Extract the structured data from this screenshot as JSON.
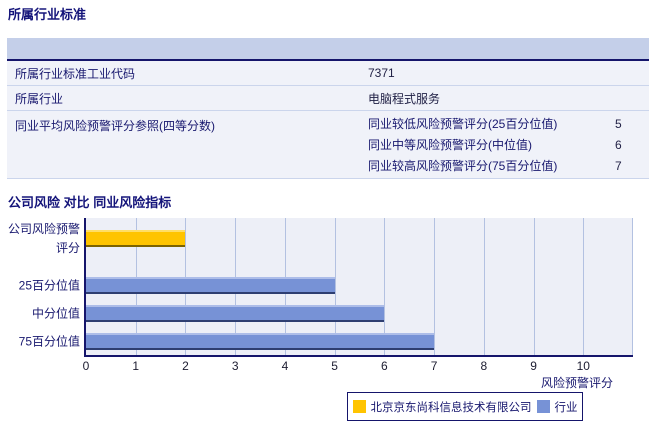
{
  "sections": {
    "industry_title": "所属行业标准",
    "compare_title": "公司风险 对比 同业风险指标"
  },
  "industry_table": {
    "rows": [
      {
        "label": "所属行业标准工业代码",
        "value": "7371"
      },
      {
        "label": "所属行业",
        "value": "电脑程式服务"
      }
    ],
    "peer_reference": {
      "label": "同业平均风险预警评分参照(四等分数)",
      "subrows": [
        {
          "label": "同业较低风险预警评分(25百分位值)",
          "value": "5"
        },
        {
          "label": "同业中等风险预警评分(中位值)",
          "value": "6"
        },
        {
          "label": "同业较高风险预警评分(75百分位值)",
          "value": "7"
        }
      ]
    }
  },
  "chart_data": {
    "type": "bar",
    "orientation": "horizontal",
    "title": "公司风险 对比 同业风险指标",
    "categories": [
      "公司风险预警评分",
      "25百分位值",
      "中分位值",
      "75百分位值"
    ],
    "values": [
      2,
      5,
      6,
      7
    ],
    "series": [
      {
        "name": "北京京东尚科信息技术有限公司",
        "color": "#ffc400",
        "values": [
          2,
          null,
          null,
          null
        ]
      },
      {
        "name": "行业",
        "color": "#7792d6",
        "values": [
          null,
          5,
          6,
          7
        ]
      }
    ],
    "xlabel": "风险预警评分",
    "xticks": [
      "0",
      "1",
      "2",
      "3",
      "4",
      "5",
      "6",
      "7",
      "8",
      "9",
      "10"
    ],
    "xlim": [
      0,
      11
    ],
    "grid": true,
    "legend_position": "bottom-right"
  },
  "legend": {
    "items": [
      {
        "label": "北京京东尚科信息技术有限公司",
        "color": "#ffc400"
      },
      {
        "label": "行业",
        "color": "#7792d6"
      }
    ]
  },
  "colors": {
    "section_title": "#14147a",
    "table_header_bg": "#c4cfe9",
    "table_row_bg": "#f0f2f9",
    "plot_bg": "#edeff7",
    "gridline": "#b3c1e1",
    "axis": "#15156b",
    "bar_company": "#ffc400",
    "bar_industry": "#7792d6"
  }
}
